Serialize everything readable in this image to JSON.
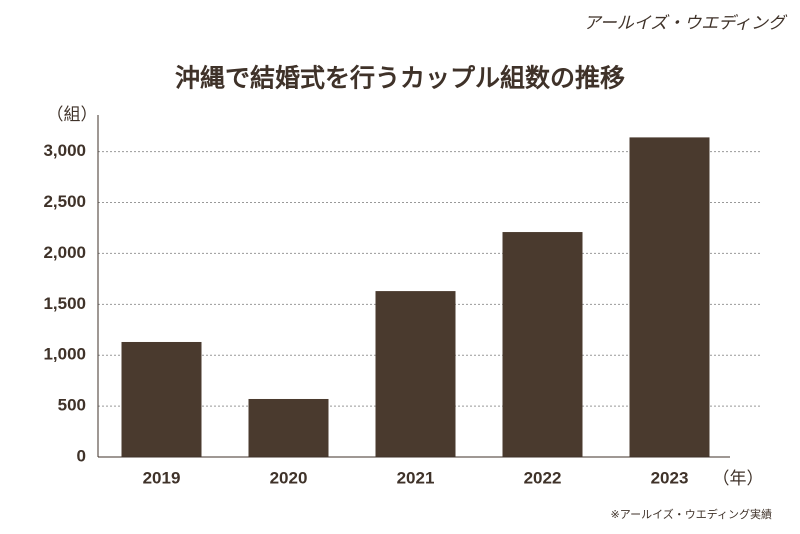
{
  "chart_data": {
    "type": "bar",
    "brand": "アールイズ・ウエディング",
    "title": "沖縄で結婚式を行うカップル組数の推移",
    "y_unit": "（組）",
    "x_unit": "（年）",
    "source": "※アールイズ・ウエディング実績",
    "categories": [
      "2019",
      "2020",
      "2021",
      "2022",
      "2023"
    ],
    "values": [
      1130,
      570,
      1630,
      2210,
      3140
    ],
    "color": "#4a3a2e",
    "ylim": [
      0,
      3360
    ],
    "yticks": [
      0,
      500,
      {
        "value": 1000,
        "label": "1,000"
      },
      {
        "value": 1500,
        "label": "1,500"
      },
      {
        "value": 2000,
        "label": "2,000"
      },
      {
        "value": 2500,
        "label": "2,500"
      },
      {
        "value": 3000,
        "label": "3,000"
      }
    ],
    "grid": true
  }
}
